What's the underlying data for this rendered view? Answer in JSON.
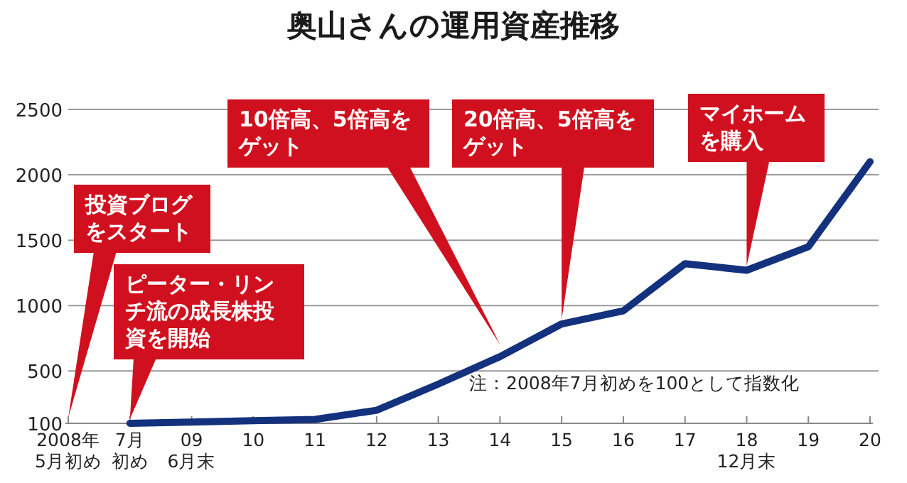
{
  "chart_data": {
    "type": "line",
    "title": "奥山さんの運用資産推移",
    "categories": [
      "2008年\n5月初め",
      "7月初め",
      "09\n6月末",
      "10",
      "11",
      "12",
      "13",
      "14",
      "15",
      "16",
      "17",
      "18\n12月末",
      "19",
      "20"
    ],
    "series": [
      {
        "color": "#13317d",
        "values": [
          null,
          100,
          110,
          120,
          130,
          200,
          400,
          610,
          860,
          960,
          1320,
          1270,
          1450,
          2100
        ]
      }
    ],
    "ylim": [
      100,
      2500
    ],
    "yticks": [
      100,
      500,
      1000,
      1500,
      2000,
      2500
    ],
    "grid": "y",
    "marker": "none",
    "line_style": "solid",
    "annotations": [
      "投資ブログをスタート",
      {
        "text": "ピーター・リンチ流の成長株投資を開始",
        "x": "7月初め",
        "y": 100
      },
      "10倍高、5倍高をゲット",
      {
        "text": "20倍高、5倍高をゲット",
        "x": "15",
        "y": 860
      },
      {
        "text": "マイホームを購入",
        "x": "18\n12月末",
        "y": 1270
      },
      "注：2008年7月初めを100として指数化"
    ]
  }
}
